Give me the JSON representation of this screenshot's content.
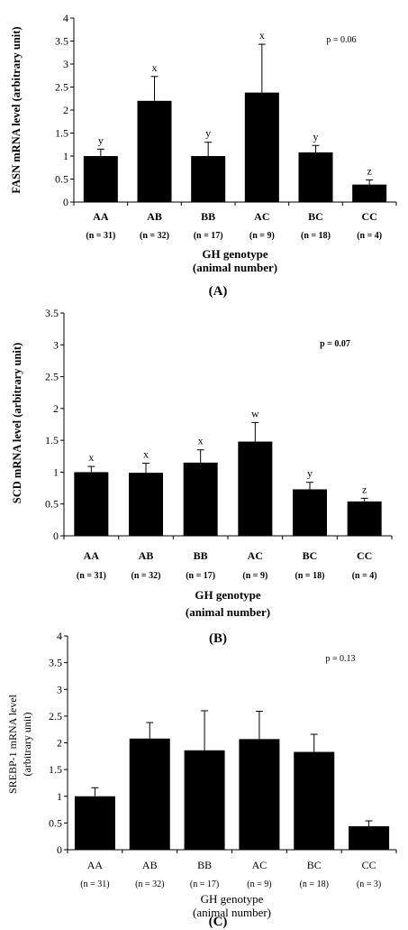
{
  "chart_data": [
    {
      "type": "bar",
      "panel_label": "(A)",
      "ylabel": "FASN mRNA level (arbitrary unit)",
      "xlabel_lines": [
        "GH genotype",
        "(animal number)"
      ],
      "categories": [
        "AA",
        "AB",
        "BB",
        "AC",
        "BC",
        "CC"
      ],
      "sample_sizes": [
        "(n = 31)",
        "(n = 32)",
        "(n = 17)",
        "(n = 9)",
        "(n = 18)",
        "(n = 4)"
      ],
      "values": [
        1.0,
        2.2,
        1.0,
        2.38,
        1.08,
        0.38
      ],
      "errors": [
        0.15,
        0.53,
        0.3,
        1.05,
        0.15,
        0.1
      ],
      "letters": [
        "y",
        "x",
        "y",
        "x",
        "y",
        "z"
      ],
      "ylim": [
        0,
        4
      ],
      "yticks": [
        "0",
        "0.5",
        "1",
        "1.5",
        "2",
        "2.5",
        "3",
        "3.5",
        "4"
      ],
      "annotation": "p = 0.06",
      "bar_color": "#000000",
      "grid": false
    },
    {
      "type": "bar",
      "panel_label": "(B)",
      "ylabel": "SCD mRNA level (arbitrary unit)",
      "xlabel_lines": [
        "GH genotype",
        "(animal number)"
      ],
      "categories": [
        "AA",
        "AB",
        "BB",
        "AC",
        "BC",
        "CC"
      ],
      "sample_sizes": [
        "(n = 31)",
        "(n = 32)",
        "(n = 17)",
        "(n = 9)",
        "(n = 18)",
        "(n = 4)"
      ],
      "values": [
        1.0,
        0.99,
        1.15,
        1.48,
        0.73,
        0.54
      ],
      "errors": [
        0.09,
        0.15,
        0.2,
        0.3,
        0.11,
        0.05
      ],
      "letters": [
        "x",
        "x",
        "x",
        "w",
        "y",
        "z"
      ],
      "ylim": [
        0,
        3.5
      ],
      "yticks": [
        "0",
        "0.5",
        "1",
        "1.5",
        "2",
        "2.5",
        "3",
        "3.5"
      ],
      "annotation": "p = 0.07",
      "bar_color": "#000000",
      "grid": false
    },
    {
      "type": "bar",
      "panel_label": "(C)",
      "ylabel_lines": [
        "SREBP-1  mRNA level",
        "(arbitrary unit)"
      ],
      "xlabel_lines": [
        "GH genotype",
        "(animal number)"
      ],
      "categories": [
        "AA",
        "AB",
        "BB",
        "AC",
        "BC",
        "CC"
      ],
      "sample_sizes": [
        "(n = 31)",
        "(n = 32)",
        "(n = 17)",
        "(n = 9)",
        "(n = 18)",
        "(n = 3)"
      ],
      "values": [
        1.0,
        2.08,
        1.86,
        2.07,
        1.83,
        0.44
      ],
      "errors": [
        0.16,
        0.3,
        0.74,
        0.52,
        0.33,
        0.1
      ],
      "letters": [
        "",
        "",
        "",
        "",
        "",
        ""
      ],
      "ylim": [
        0,
        4
      ],
      "yticks": [
        "0",
        "0.5",
        "1",
        "1.5",
        "2",
        "2.5",
        "3",
        "3.5",
        "4"
      ],
      "annotation": "p = 0.13",
      "bar_color": "#000000",
      "grid": false
    }
  ]
}
